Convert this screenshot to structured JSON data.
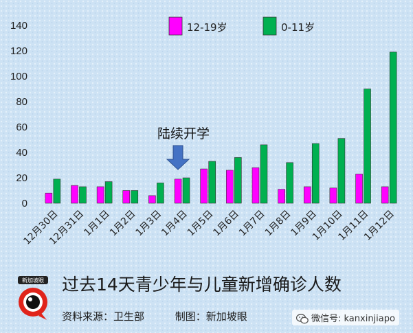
{
  "chart_data": {
    "type": "bar",
    "categories": [
      "12月30日",
      "12月31日",
      "1月1日",
      "1月2日",
      "1月3日",
      "1月4日",
      "1月5日",
      "1月6日",
      "1月7日",
      "1月8日",
      "1月9日",
      "1月10日",
      "1月11日",
      "1月12日"
    ],
    "series": [
      {
        "name": "12-19岁",
        "color": "#ff00ff",
        "values": [
          8,
          14,
          13,
          10,
          6,
          19,
          27,
          26,
          28,
          11,
          13,
          12,
          23,
          13
        ]
      },
      {
        "name": "0-11岁",
        "color": "#00b050",
        "values": [
          19,
          13,
          17,
          10,
          16,
          20,
          33,
          36,
          46,
          32,
          47,
          51,
          90,
          119
        ]
      }
    ],
    "ylim": [
      0,
      140
    ],
    "yticks": [
      0,
      20,
      40,
      60,
      80,
      100,
      120,
      140
    ],
    "legend": "top-center",
    "grid": false,
    "annotation": {
      "text": "陆续开学",
      "category": "1月4日"
    }
  },
  "footer": {
    "title": "过去14天青少年与儿童新增确诊人数",
    "source": "资料来源：卫生部",
    "made_by": "制图：新加坡眼"
  },
  "watermark": {
    "text": "微信号: kanxinjiapo",
    "icon": "wechat-icon"
  },
  "logo": {
    "text": "新加坡眼",
    "icon": "eye-logo-icon"
  }
}
